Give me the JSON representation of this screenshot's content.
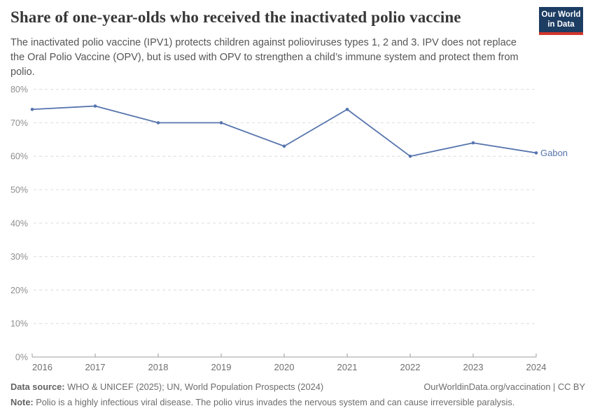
{
  "header": {
    "title": "Share of one-year-olds who received the inactivated polio vaccine",
    "subtitle": "The inactivated polio vaccine (IPV1) protects children against polioviruses types 1, 2 and 3. IPV does not replace the Oral Polio Vaccine (OPV), but is used with OPV to strengthen a child’s immune system and protect them from polio.",
    "logo": {
      "line1": "Our World",
      "line2": "in Data",
      "bg_color": "#1d3d63",
      "accent_color": "#d2372c"
    }
  },
  "chart_data": {
    "type": "line",
    "title": "Share of one-year-olds who received the inactivated polio vaccine",
    "x": [
      2016,
      2017,
      2018,
      2019,
      2020,
      2021,
      2022,
      2023,
      2024
    ],
    "series": [
      {
        "name": "Gabon",
        "color": "#5674ad",
        "values": [
          74,
          75,
          70,
          70,
          63,
          74,
          60,
          64,
          61
        ]
      }
    ],
    "end_label": "Gabon",
    "ylim": [
      0,
      80
    ],
    "ytick_step": 10,
    "ytick_suffix": "%",
    "grid": "horizontal-dashed",
    "grid_color": "#dcdcdc",
    "axis_color": "#9d9d9d",
    "ytick_label_color": "#8f8f8f",
    "xtick_label_color": "#6f6f6f",
    "legend_position": "end-of-line"
  },
  "footer": {
    "data_source_label": "Data source:",
    "data_source": " WHO & UNICEF (2025); UN, World Population Prospects (2024)",
    "attribution": "OurWorldinData.org/vaccination | CC BY",
    "note_label": "Note:",
    "note": " Polio is a highly infectious viral disease. The polio virus invades the nervous system and can cause irreversible paralysis."
  }
}
